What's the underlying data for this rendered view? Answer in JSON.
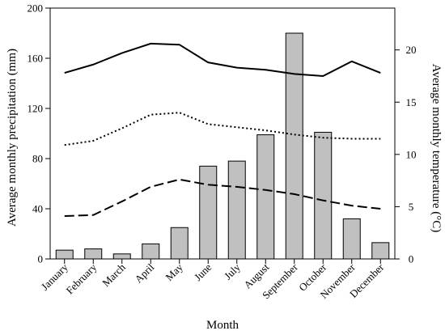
{
  "chart_data": {
    "type": "bar",
    "title": "",
    "xlabel": "Month",
    "ylabel": "Average monthly precipitation (mm)",
    "y2label": "Average monthly temperature (°C)",
    "ylim": [
      0,
      200
    ],
    "y2lim": [
      0,
      24
    ],
    "yticks": [
      0,
      40,
      80,
      120,
      160,
      200
    ],
    "y2ticks": [
      0,
      5,
      10,
      15,
      20
    ],
    "grid": false,
    "legend": "none",
    "categories": [
      "January",
      "February",
      "March",
      "April",
      "May",
      "June",
      "July",
      "August",
      "September",
      "October",
      "November",
      "December"
    ],
    "bars": {
      "axis": "left",
      "color": "#c0c0c0",
      "values": [
        7,
        8,
        4,
        12,
        25,
        74,
        78,
        99,
        180,
        101,
        32,
        13
      ]
    },
    "series": [
      {
        "axis": "right",
        "style": "solid",
        "values": [
          17.8,
          18.6,
          19.7,
          20.6,
          20.5,
          18.8,
          18.3,
          18.1,
          17.7,
          17.5,
          18.9,
          17.8
        ]
      },
      {
        "axis": "right",
        "style": "dotted",
        "values": [
          10.9,
          11.3,
          12.5,
          13.8,
          14.0,
          12.9,
          12.6,
          12.3,
          11.9,
          11.6,
          11.5,
          11.5
        ]
      },
      {
        "axis": "right",
        "style": "dashed",
        "values": [
          4.1,
          4.2,
          5.5,
          6.9,
          7.6,
          7.1,
          6.9,
          6.6,
          6.2,
          5.6,
          5.1,
          4.8
        ]
      }
    ]
  }
}
